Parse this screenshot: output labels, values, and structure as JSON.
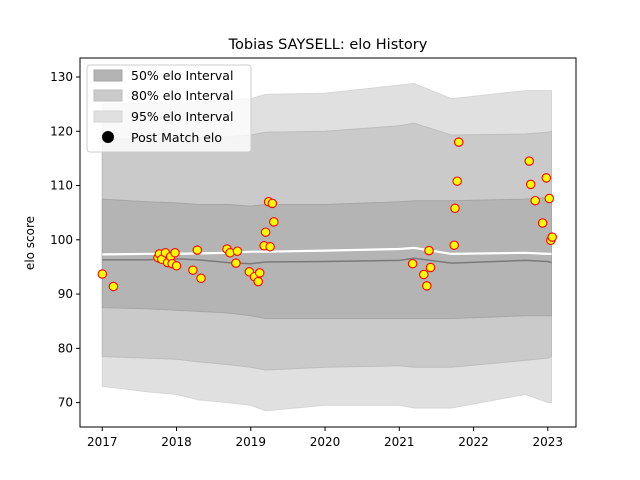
{
  "chart_data": {
    "type": "scatter",
    "title": "Tobias SAYSELL: elo History",
    "xlabel": "",
    "ylabel": "elo score",
    "xlim": [
      2016.7,
      2023.38
    ],
    "ylim": [
      65.5,
      133.5
    ],
    "x_ticks": [
      2017,
      2018,
      2019,
      2020,
      2021,
      2022,
      2023
    ],
    "x_tick_labels": [
      "2017",
      "2018",
      "2019",
      "2020",
      "2021",
      "2022",
      "2023"
    ],
    "y_ticks": [
      70,
      80,
      90,
      100,
      110,
      120,
      130
    ],
    "y_tick_labels": [
      "70",
      "80",
      "90",
      "100",
      "110",
      "120",
      "130"
    ],
    "legend": {
      "position": "top-left",
      "entries": [
        "50% elo Interval",
        "80% elo Interval",
        "95% elo Interval",
        "Post Match elo"
      ]
    },
    "band_x": [
      2017.0,
      2017.6,
      2018.0,
      2018.3,
      2018.7,
      2019.0,
      2019.2,
      2020.0,
      2021.0,
      2021.2,
      2021.7,
      2022.7,
      2023.0,
      2023.05
    ],
    "bands": {
      "p95_upper": [
        125.0,
        125.2,
        125.0,
        125.5,
        125.8,
        126.0,
        126.8,
        127.0,
        128.5,
        128.8,
        126.0,
        127.5,
        127.5,
        127.5
      ],
      "p95_lower": [
        73.0,
        72.0,
        71.5,
        70.5,
        70.0,
        69.5,
        68.5,
        69.5,
        69.5,
        69.0,
        69.0,
        71.5,
        70.0,
        70.0
      ],
      "p80_upper": [
        118.5,
        118.6,
        118.5,
        118.8,
        119.0,
        119.3,
        119.8,
        120.0,
        121.0,
        121.5,
        119.3,
        119.5,
        119.8,
        120.0
      ],
      "p80_lower": [
        78.5,
        78.2,
        78.0,
        77.5,
        77.0,
        76.5,
        76.0,
        76.5,
        76.8,
        76.5,
        76.5,
        77.8,
        78.2,
        78.5
      ],
      "p50_upper": [
        107.5,
        107.0,
        106.8,
        106.5,
        106.5,
        106.2,
        106.5,
        106.5,
        107.0,
        107.2,
        107.2,
        107.5,
        107.8,
        108.0
      ],
      "p50_lower": [
        87.5,
        87.3,
        87.0,
        86.8,
        86.5,
        86.0,
        85.5,
        85.5,
        85.5,
        85.5,
        85.5,
        86.0,
        86.0,
        86.0
      ],
      "median": [
        96.3,
        96.3,
        96.5,
        96.3,
        95.8,
        95.6,
        95.9,
        96.0,
        96.2,
        96.6,
        95.7,
        96.2,
        96.0,
        95.8
      ],
      "mean": [
        97.3,
        97.4,
        97.4,
        97.5,
        97.6,
        97.8,
        97.8,
        98.0,
        98.3,
        98.5,
        97.4,
        97.6,
        97.4,
        97.4
      ]
    },
    "points": [
      {
        "x": 2017.0,
        "y": 93.7
      },
      {
        "x": 2017.15,
        "y": 91.4
      },
      {
        "x": 2017.75,
        "y": 96.7
      },
      {
        "x": 2017.77,
        "y": 97.4
      },
      {
        "x": 2017.8,
        "y": 96.4
      },
      {
        "x": 2017.85,
        "y": 97.6
      },
      {
        "x": 2017.88,
        "y": 95.8
      },
      {
        "x": 2017.92,
        "y": 96.9
      },
      {
        "x": 2017.94,
        "y": 95.6
      },
      {
        "x": 2017.98,
        "y": 97.6
      },
      {
        "x": 2018.0,
        "y": 95.2
      },
      {
        "x": 2018.22,
        "y": 94.4
      },
      {
        "x": 2018.28,
        "y": 98.1
      },
      {
        "x": 2018.33,
        "y": 92.9
      },
      {
        "x": 2018.68,
        "y": 98.3
      },
      {
        "x": 2018.72,
        "y": 97.6
      },
      {
        "x": 2018.8,
        "y": 95.7
      },
      {
        "x": 2018.82,
        "y": 97.9
      },
      {
        "x": 2018.98,
        "y": 94.1
      },
      {
        "x": 2019.05,
        "y": 93.2
      },
      {
        "x": 2019.1,
        "y": 92.3
      },
      {
        "x": 2019.12,
        "y": 93.9
      },
      {
        "x": 2019.18,
        "y": 98.9
      },
      {
        "x": 2019.2,
        "y": 101.4
      },
      {
        "x": 2019.24,
        "y": 107.0
      },
      {
        "x": 2019.26,
        "y": 98.7
      },
      {
        "x": 2019.29,
        "y": 106.7
      },
      {
        "x": 2019.31,
        "y": 103.3
      },
      {
        "x": 2021.18,
        "y": 95.6
      },
      {
        "x": 2021.33,
        "y": 93.6
      },
      {
        "x": 2021.37,
        "y": 91.5
      },
      {
        "x": 2021.4,
        "y": 98.0
      },
      {
        "x": 2021.42,
        "y": 94.9
      },
      {
        "x": 2021.74,
        "y": 99.0
      },
      {
        "x": 2021.75,
        "y": 105.8
      },
      {
        "x": 2021.78,
        "y": 110.8
      },
      {
        "x": 2021.8,
        "y": 118.0
      },
      {
        "x": 2022.75,
        "y": 114.5
      },
      {
        "x": 2022.77,
        "y": 110.2
      },
      {
        "x": 2022.83,
        "y": 107.2
      },
      {
        "x": 2022.93,
        "y": 103.1
      },
      {
        "x": 2022.98,
        "y": 111.4
      },
      {
        "x": 2023.02,
        "y": 107.6
      },
      {
        "x": 2023.04,
        "y": 99.9
      },
      {
        "x": 2023.06,
        "y": 100.5
      }
    ],
    "colors": {
      "p95": "#e0e0e0",
      "p80": "#cacaca",
      "p50": "#b4b4b4",
      "median": "#7a7a7a",
      "mean": "#ffffff",
      "point_fill": "#ffff00",
      "point_edge": "#ff0000",
      "legend_marker": "#000000"
    }
  }
}
